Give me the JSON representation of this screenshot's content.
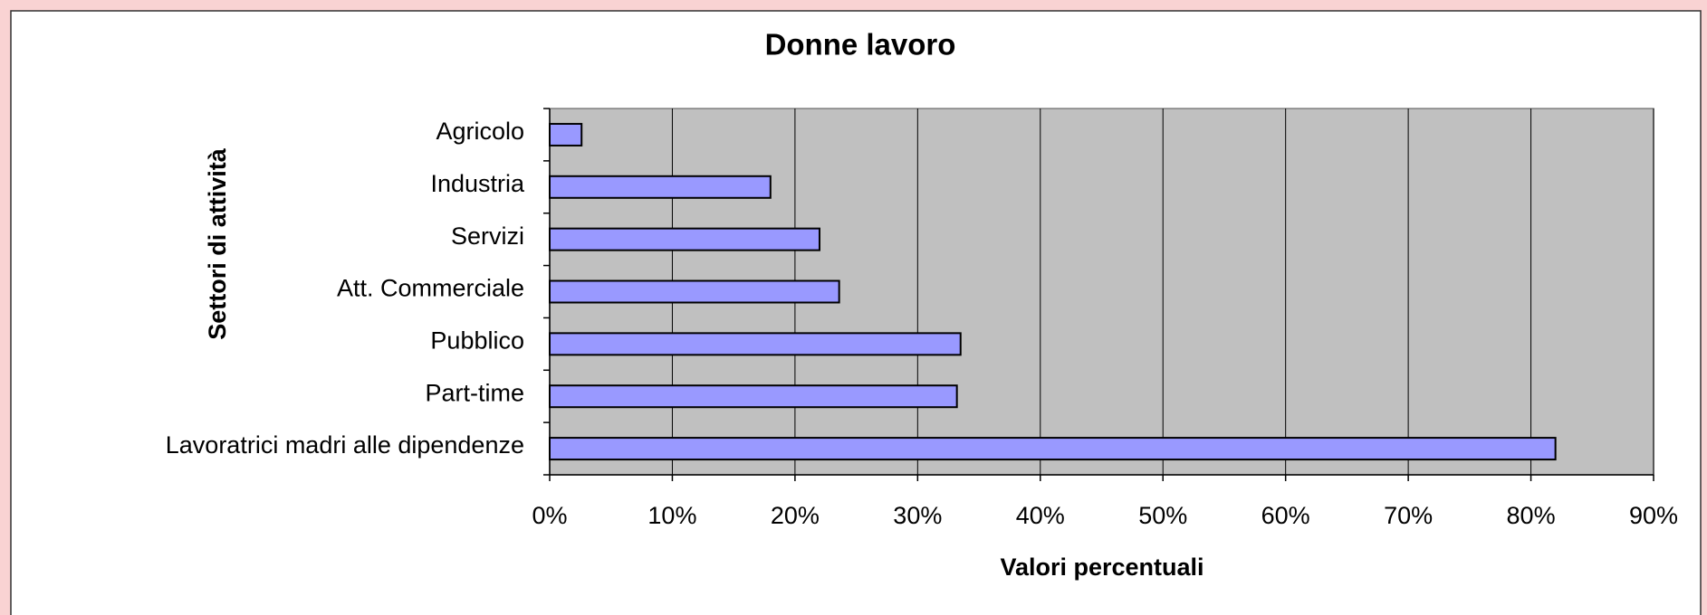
{
  "chart_data": {
    "type": "bar",
    "orientation": "horizontal",
    "title": "Donne lavoro",
    "xlabel": "Valori percentuali",
    "ylabel": "Settori di attività",
    "categories": [
      "Agricolo",
      "Industria",
      "Servizi",
      "Att. Commerciale",
      "Pubblico",
      "Part-time",
      "Lavoratrici madri alle dipendenze"
    ],
    "values": [
      2.6,
      18,
      22,
      23.6,
      33.5,
      33.2,
      82
    ],
    "color": "#9999ff",
    "xlim": [
      0,
      90
    ],
    "xticks": [
      {
        "value": 0,
        "label": "0%"
      },
      {
        "value": 10,
        "label": "10%"
      },
      {
        "value": 20,
        "label": "20%"
      },
      {
        "value": 30,
        "label": "30%"
      },
      {
        "value": 40,
        "label": "40%"
      },
      {
        "value": 50,
        "label": "50%"
      },
      {
        "value": 60,
        "label": "60%"
      },
      {
        "value": 70,
        "label": "70%"
      },
      {
        "value": 80,
        "label": "80%"
      },
      {
        "value": 90,
        "label": "90%"
      }
    ],
    "grid": true
  }
}
